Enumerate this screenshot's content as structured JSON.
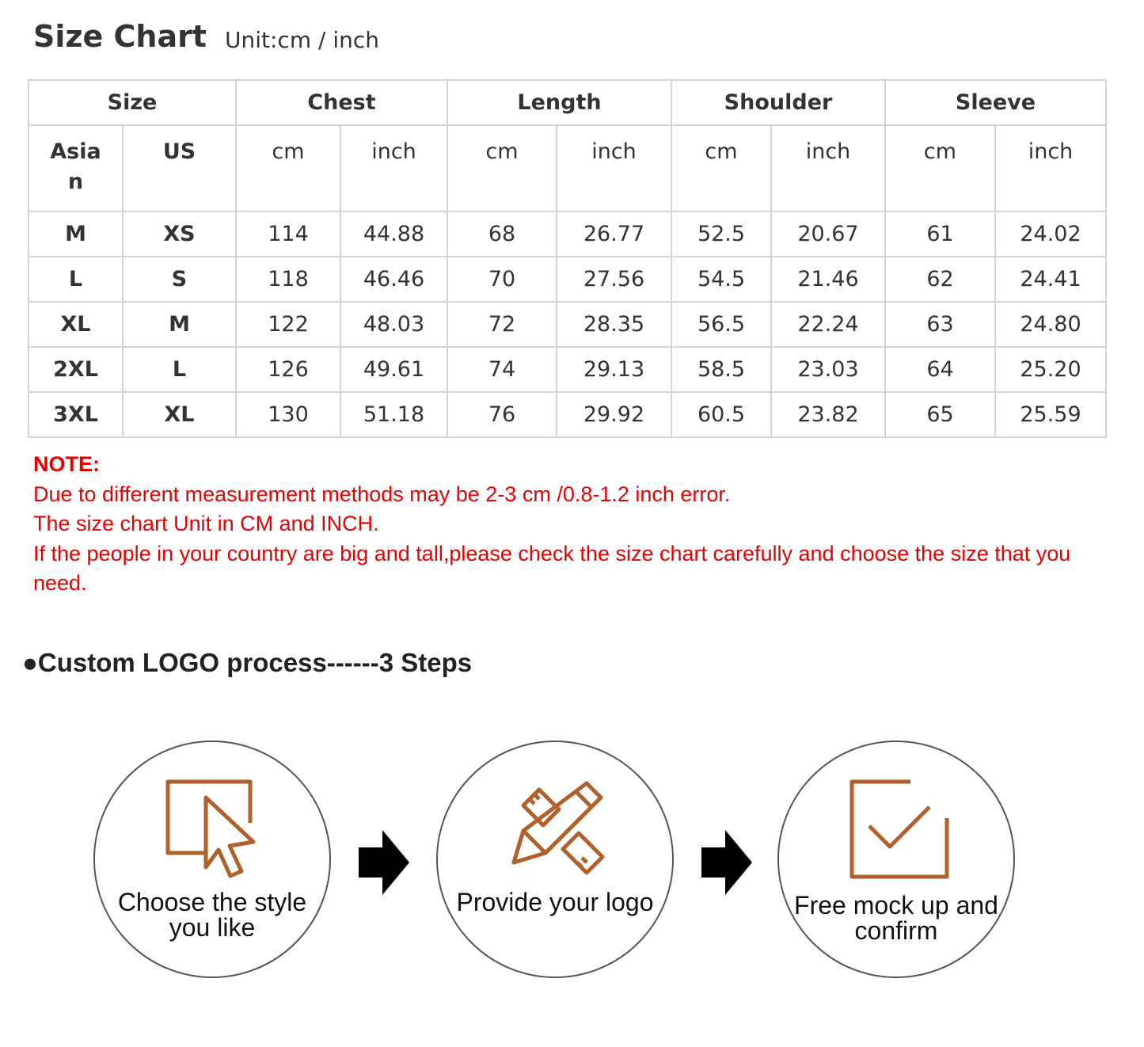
{
  "header": {
    "title": "Size Chart",
    "unit": "Unit:cm / inch"
  },
  "table": {
    "groups": [
      "Size",
      "Chest",
      "Length",
      "Shoulder",
      "Sleeve"
    ],
    "subheaders": [
      "Asia n",
      "US",
      "cm",
      "inch",
      "cm",
      "inch",
      "cm",
      "inch",
      "cm",
      "inch"
    ],
    "rows": [
      [
        "M",
        "XS",
        "114",
        "44.88",
        "68",
        "26.77",
        "52.5",
        "20.67",
        "61",
        "24.02"
      ],
      [
        "L",
        "S",
        "118",
        "46.46",
        "70",
        "27.56",
        "54.5",
        "21.46",
        "62",
        "24.41"
      ],
      [
        "XL",
        "M",
        "122",
        "48.03",
        "72",
        "28.35",
        "56.5",
        "22.24",
        "63",
        "24.80"
      ],
      [
        "2XL",
        "L",
        "126",
        "49.61",
        "74",
        "29.13",
        "58.5",
        "23.03",
        "64",
        "25.20"
      ],
      [
        "3XL",
        "XL",
        "130",
        "51.18",
        "76",
        "29.92",
        "60.5",
        "23.82",
        "65",
        "25.59"
      ]
    ]
  },
  "note": {
    "heading": "NOTE:",
    "lines": [
      "Due to different measurement methods may be 2-3 cm /0.8-1.2 inch error.",
      "The size chart Unit in CM and INCH.",
      "If the people in your country are big and tall,please check the size chart carefully and choose the size that you need."
    ]
  },
  "process": {
    "heading": "●Custom LOGO process------3 Steps",
    "steps": [
      {
        "label": "Choose the style you like",
        "icon": "cursor-select-icon"
      },
      {
        "label": "Provide your logo",
        "icon": "pencil-ruler-icon"
      },
      {
        "label": "Free mock up and confirm",
        "icon": "checkbox-icon"
      }
    ],
    "icon_color": "#b0602a",
    "note_color": "#e60000"
  }
}
